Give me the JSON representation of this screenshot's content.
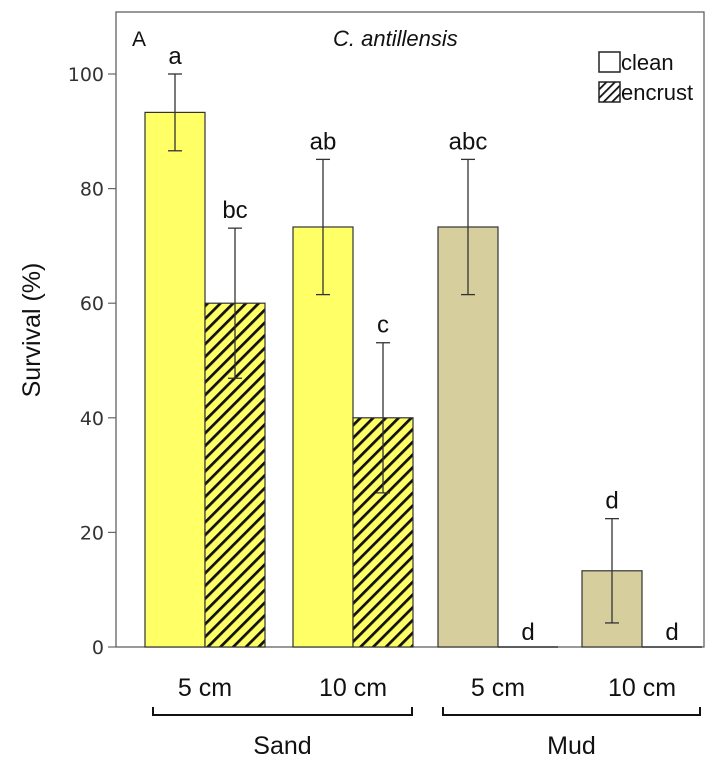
{
  "chart_data": {
    "type": "bar",
    "panel_label": "A",
    "title": "C. antillensis",
    "ylabel": "Survival (%)",
    "ylim": [
      0,
      110
    ],
    "yticks": [
      "0",
      "20",
      "40",
      "60",
      "80",
      "100"
    ],
    "ytick_values": [
      0,
      20,
      40,
      60,
      80,
      100
    ],
    "groups": [
      "Sand",
      "Mud"
    ],
    "categories": [
      "5 cm",
      "10 cm",
      "5 cm",
      "10 cm"
    ],
    "category_group": [
      "Sand",
      "Sand",
      "Mud",
      "Mud"
    ],
    "series": [
      {
        "name": "clean",
        "values": [
          93.3,
          73.3,
          73.3,
          13.3
        ],
        "error": [
          6.7,
          11.8,
          11.8,
          9.1
        ],
        "significance": [
          "a",
          "ab",
          "abc",
          "d"
        ]
      },
      {
        "name": "encrust",
        "values": [
          60,
          40,
          0,
          0
        ],
        "error": [
          13.1,
          13.1,
          0,
          0
        ],
        "significance": [
          "bc",
          "c",
          "d",
          "d"
        ]
      }
    ],
    "colors": {
      "sand_fill": "#ffff66",
      "mud_fill": "#d6ce9c",
      "hatch": "#111111",
      "axis": "#666666"
    },
    "legend_position": "top-right",
    "grid": false
  }
}
